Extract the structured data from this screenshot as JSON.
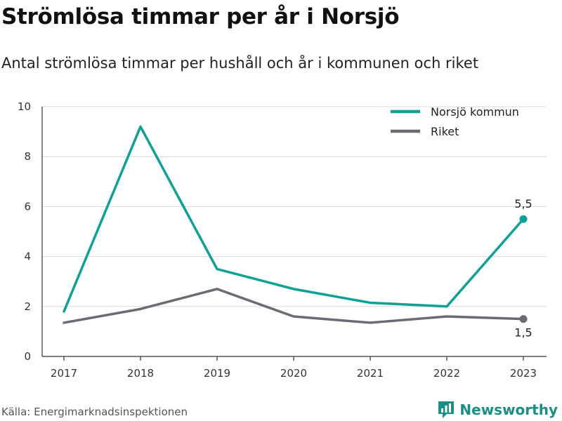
{
  "header": {
    "title": "Strömlösa timmar per år i Norsjö",
    "subtitle": "Antal strömlösa timmar per hushåll och år i kommunen och riket"
  },
  "footer": {
    "source": "Källa: Energimarknadsinspektionen",
    "brand": "Newsworthy"
  },
  "colors": {
    "norsjo": "#0fa196",
    "riket": "#6b6b73",
    "grid": "#d9d9d9",
    "brand": "#1b8f86"
  },
  "icons": {
    "brand": "newsworthy-logo-icon"
  },
  "chart_data": {
    "type": "line",
    "x": [
      "2017",
      "2018",
      "2019",
      "2020",
      "2021",
      "2022",
      "2023"
    ],
    "series": [
      {
        "name": "Norsjö kommun",
        "values": [
          1.8,
          9.2,
          3.5,
          2.7,
          2.15,
          2.0,
          5.5
        ],
        "end_label": "5,5"
      },
      {
        "name": "Riket",
        "values": [
          1.35,
          1.9,
          2.7,
          1.6,
          1.35,
          1.6,
          1.5
        ],
        "end_label": "1,5"
      }
    ],
    "ylim": [
      0,
      10
    ],
    "yticks": [
      "0",
      "2",
      "4",
      "6",
      "8",
      "10"
    ],
    "grid": true,
    "legend": "top-right",
    "xlabel": "",
    "ylabel": ""
  }
}
